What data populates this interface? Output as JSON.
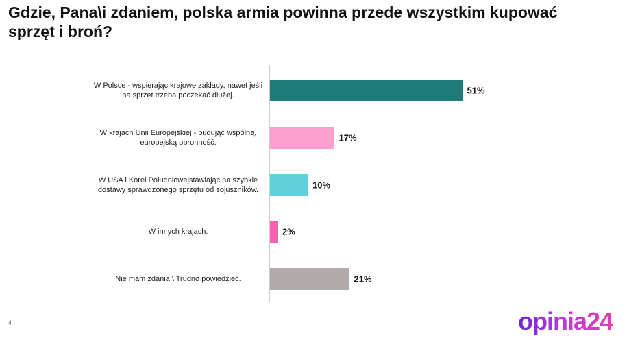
{
  "chart_data": {
    "type": "bar",
    "orientation": "horizontal",
    "title": "Gdzie, Pana\\i zdaniem, polska armia powinna przede wszystkim kupować sprzęt i broń?",
    "categories": [
      "W Polsce - wspierając krajowe zakłady, nawet jeśli na sprzęt trzeba poczekać dłużej.",
      "W krajach Unii Europejskiej - budując wspólną, europejską obronność.",
      "W USA i Korei Południowejstawiając na szybkie dostawy sprawdzonego sprzętu od sojuszników.",
      "W innych krajach.",
      "Nie mam zdania \\ Trudno powiedzieć."
    ],
    "values": [
      51,
      17,
      10,
      2,
      21
    ],
    "value_labels": [
      "51%",
      "17%",
      "10%",
      "2%",
      "21%"
    ],
    "colors": [
      "#1f7a7a",
      "#ff9fd0",
      "#5fd0dc",
      "#f264b4",
      "#b0aaaa"
    ]
  },
  "page_number": "4",
  "logo": "opinia24"
}
